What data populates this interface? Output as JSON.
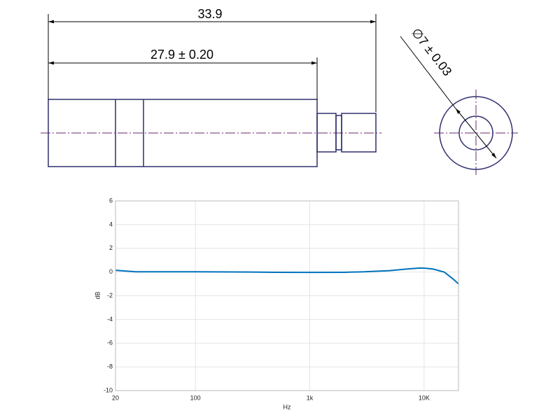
{
  "drawing": {
    "dimensions": [
      "33.9",
      "27.9 ± 0.20",
      "∅7 ± 0.03"
    ]
  },
  "chart_data": {
    "type": "line",
    "xlabel": "Hz",
    "ylabel": "dB",
    "log_x": true,
    "grid": true,
    "xlim": [
      20,
      20000
    ],
    "ylim": [
      -10,
      6
    ],
    "xticks": [
      20,
      100,
      {
        "value": 1000,
        "label": "1k"
      },
      {
        "value": 10000,
        "label": "10K"
      }
    ],
    "yticks": [
      -10,
      -8,
      -6,
      -4,
      -2,
      0,
      2,
      4,
      6
    ],
    "x": [
      20,
      30,
      50,
      100,
      300,
      500,
      1000,
      2000,
      3000,
      5000,
      7000,
      9000,
      10000,
      12000,
      15000,
      18000,
      20000
    ],
    "series": [
      {
        "color": "#0072bd",
        "values": [
          0.15,
          0.02,
          0.02,
          0.02,
          0.0,
          -0.02,
          -0.03,
          -0.02,
          0.02,
          0.12,
          0.25,
          0.33,
          0.33,
          0.25,
          0.0,
          -0.6,
          -1.0
        ]
      }
    ]
  }
}
